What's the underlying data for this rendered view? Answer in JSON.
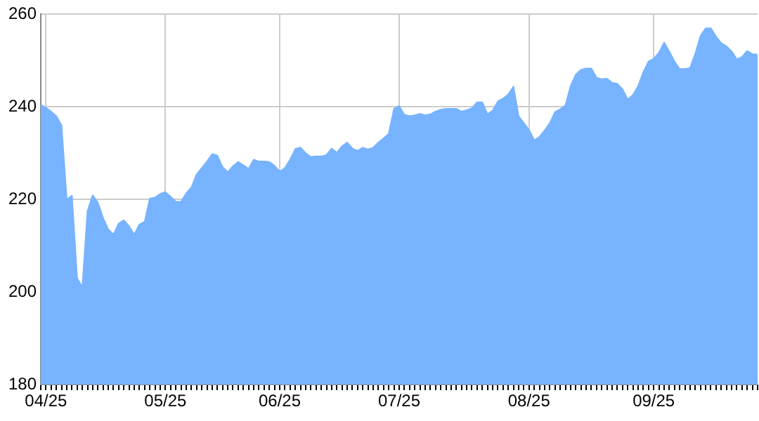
{
  "chart_data": {
    "type": "area",
    "categories": [
      null,
      "04/25",
      null,
      null,
      null,
      null,
      null,
      null,
      null,
      null,
      null,
      null,
      null,
      null,
      null,
      null,
      null,
      null,
      null,
      null,
      null,
      null,
      null,
      null,
      "05/25",
      null,
      null,
      null,
      null,
      null,
      null,
      null,
      null,
      null,
      null,
      null,
      null,
      null,
      null,
      null,
      null,
      null,
      null,
      null,
      null,
      null,
      "06/25",
      null,
      null,
      null,
      null,
      null,
      null,
      null,
      null,
      null,
      null,
      null,
      null,
      null,
      null,
      null,
      null,
      null,
      null,
      null,
      null,
      null,
      null,
      "07/25",
      null,
      null,
      null,
      null,
      null,
      null,
      null,
      null,
      null,
      null,
      null,
      null,
      null,
      null,
      null,
      null,
      null,
      null,
      null,
      null,
      null,
      null,
      null,
      null,
      "08/25",
      null,
      null,
      null,
      null,
      null,
      null,
      null,
      null,
      null,
      null,
      null,
      null,
      null,
      null,
      null,
      null,
      null,
      null,
      null,
      null,
      null,
      null,
      null,
      "09/25",
      null,
      null,
      null,
      null,
      null,
      null,
      null,
      null,
      null,
      null,
      null,
      null,
      null,
      null,
      null,
      null,
      null,
      null,
      null,
      null
    ],
    "series": [
      {
        "color": "#77b3ff",
        "values": [
          240.5,
          239.8,
          239,
          238,
          236,
          220,
          220.8,
          203,
          201,
          217.5,
          220.9,
          219.3,
          216,
          213.5,
          212.4,
          214.8,
          215.5,
          214.2,
          212.4,
          214.6,
          215.2,
          220.2,
          220.4,
          221.2,
          221.6,
          220.6,
          219.5,
          219.5,
          221.3,
          222.6,
          225.4,
          226.8,
          228.2,
          229.8,
          229.5,
          227,
          225.9,
          227.2,
          228.1,
          227.4,
          226.6,
          228.6,
          228.2,
          228.2,
          228.1,
          227.3,
          226,
          226.8,
          228.6,
          230.9,
          231.2,
          230,
          229.2,
          229.3,
          229.3,
          229.6,
          231,
          230.1,
          231.5,
          232.3,
          231,
          230.5,
          231.2,
          230.8,
          231.2,
          232.3,
          233.2,
          234.2,
          239.6,
          240.2,
          238.3,
          238,
          238.2,
          238.5,
          238.2,
          238.4,
          239,
          239.4,
          239.6,
          239.6,
          239.6,
          239,
          239.3,
          239.7,
          241,
          241,
          238.4,
          239.2,
          241.2,
          241.8,
          242.7,
          244.4,
          238,
          236.5,
          235,
          232.8,
          233.5,
          234.9,
          236.5,
          238.9,
          239.5,
          240.3,
          244.5,
          247,
          248,
          248.3,
          248.3,
          246.3,
          246,
          246.1,
          245.2,
          245,
          243.8,
          241.6,
          242.6,
          244.5,
          247.5,
          249.8,
          250.4,
          251.7,
          253.9,
          252,
          249.8,
          248.2,
          248.2,
          248.4,
          251.5,
          255.3,
          257,
          257,
          255.2,
          253.8,
          253.1,
          252,
          250.3,
          250.8,
          252.1,
          251.4,
          251.3
        ]
      }
    ],
    "ylim": [
      180,
      260
    ],
    "yticks": [
      180,
      200,
      220,
      240,
      260
    ],
    "grid": true,
    "legend": false,
    "marker": "none"
  }
}
